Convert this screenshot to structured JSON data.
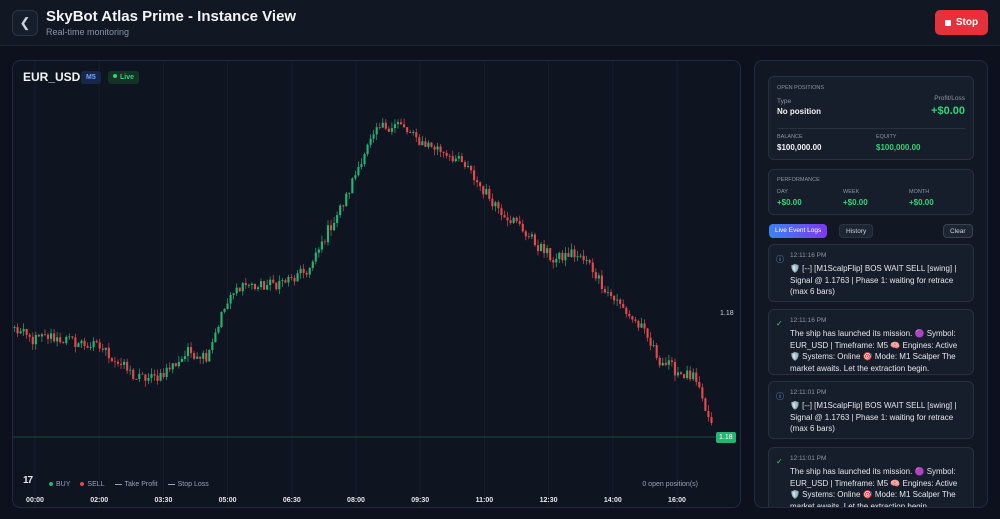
{
  "header": {
    "title": "SkyBot Atlas Prime - Instance View",
    "subtitle": "Real-time monitoring",
    "stop_label": "Stop"
  },
  "chart": {
    "symbol": "EUR_USD",
    "timeframe": "M5",
    "live_label": "Live",
    "price_label": "1.18",
    "current_price_tag": "1.18",
    "legend": {
      "buy": "BUY",
      "sell": "SELL",
      "take_profit": "Take Profit",
      "stop_loss": "Stop Loss"
    },
    "open_positions_text": "0 open position(s)",
    "x_ticks": [
      "00:00",
      "02:00",
      "03:30",
      "05:00",
      "06:30",
      "08:00",
      "09:30",
      "11:00",
      "12:30",
      "14:00",
      "16:00"
    ],
    "colors": {
      "up": "#22b573",
      "down": "#e5484d",
      "background": "#0e1420"
    }
  },
  "chart_data": {
    "type": "candlestick",
    "xlabel": "",
    "ylabel": "",
    "y_tick_labels": [
      "1.18"
    ],
    "x": [
      "00:00",
      "02:00",
      "03:30",
      "05:00",
      "06:30",
      "08:00",
      "09:30",
      "11:00",
      "12:30",
      "14:00",
      "16:00"
    ],
    "close_series": [
      40,
      37,
      38,
      37,
      36,
      35,
      31,
      27,
      27,
      30,
      34,
      33,
      45,
      52,
      51,
      52,
      53,
      56,
      66,
      74,
      86,
      93,
      94,
      90,
      88,
      86,
      82,
      76,
      71,
      67,
      62,
      58,
      60,
      57,
      50,
      45,
      40,
      32,
      29,
      27,
      14
    ],
    "last_price": 1.18
  },
  "sidebar": {
    "open_positions": {
      "title": "OPEN POSITIONS",
      "type_label": "Type",
      "type_value": "No position",
      "pl_label": "Profit/Loss",
      "pl_value": "+$0.00",
      "balance_label": "BALANCE",
      "balance_value": "$100,000.00",
      "equity_label": "EQUITY",
      "equity_value": "$100,000.00"
    },
    "performance": {
      "title": "PERFORMANCE",
      "day_label": "DAY",
      "day_value": "+$0.00",
      "week_label": "WEEK",
      "week_value": "+$0.00",
      "month_label": "MONTH",
      "month_value": "+$0.00"
    },
    "tabs": {
      "live_logs": "Live Event Logs",
      "history": "History",
      "clear": "Clear"
    },
    "logs": [
      {
        "icon": "info-icon",
        "time": "12:11:16 PM",
        "text": "🛡️ [--] [M1ScalpFlip] BOS WAIT SELL [swing] | Signal @ 1.1763 | Phase 1: waiting for retrace (max 6 bars)"
      },
      {
        "icon": "check-icon",
        "time": "12:11:16 PM",
        "text": "The ship has launched its mission. 🟣 Symbol: EUR_USD | Timeframe: M5 🧠 Engines: Active 🛡️ Systems: Online 🎯 Mode: M1 Scalper The market awaits. Let the extraction begin."
      },
      {
        "icon": "info-icon",
        "time": "12:11:01 PM",
        "text": "🛡️ [--] [M1ScalpFlip] BOS WAIT SELL [swing] | Signal @ 1.1763 | Phase 1: waiting for retrace (max 6 bars)"
      },
      {
        "icon": "check-icon",
        "time": "12:11:01 PM",
        "text": "The ship has launched its mission. 🟣 Symbol: EUR_USD | Timeframe: M5 🧠 Engines: Active 🛡️ Systems: Online 🎯 Mode: M1 Scalper The market awaits. Let the extraction begin."
      }
    ]
  }
}
